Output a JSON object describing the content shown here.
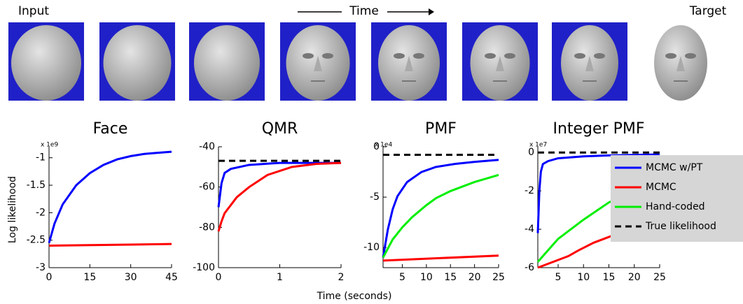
{
  "header": {
    "input_label": "Input",
    "time_label": "Time",
    "target_label": "Target"
  },
  "axis_labels": {
    "y": "Log likelihood",
    "x": "Time (seconds)"
  },
  "chart_data": [
    {
      "type": "line",
      "title": "Face",
      "scale_label": "x 1e9",
      "xlim": [
        0,
        45
      ],
      "xticks": [
        0,
        15,
        30,
        45
      ],
      "ylim": [
        -3,
        -0.8
      ],
      "yticks": [
        -1,
        -1.5,
        -2,
        -2.5,
        -3
      ],
      "series": [
        {
          "color": "#0000ff",
          "x": [
            0,
            2,
            5,
            10,
            15,
            20,
            25,
            30,
            35,
            40,
            45
          ],
          "values": [
            -2.55,
            -2.2,
            -1.85,
            -1.5,
            -1.28,
            -1.13,
            -1.03,
            -0.97,
            -0.93,
            -0.91,
            -0.89
          ]
        },
        {
          "color": "#ff0000",
          "x": [
            0,
            15,
            30,
            45
          ],
          "values": [
            -2.6,
            -2.59,
            -2.58,
            -2.57
          ]
        }
      ]
    },
    {
      "type": "line",
      "title": "QMR",
      "xlim": [
        0,
        2
      ],
      "xticks": [
        0,
        1,
        2
      ],
      "ylim": [
        -100,
        -40
      ],
      "yticks": [
        -40,
        -60,
        -80,
        -100
      ],
      "series": [
        {
          "color": "#0000ff",
          "x": [
            0,
            0.05,
            0.1,
            0.2,
            0.5,
            1,
            1.5,
            2
          ],
          "values": [
            -70,
            -58,
            -53,
            -51,
            -49,
            -48,
            -48,
            -48
          ]
        },
        {
          "color": "#ff0000",
          "x": [
            0,
            0.05,
            0.1,
            0.3,
            0.5,
            0.8,
            1.2,
            1.6,
            2
          ],
          "values": [
            -82,
            -77,
            -73,
            -65,
            -60,
            -54,
            -50,
            -48.5,
            -48
          ]
        },
        {
          "color": "#000000",
          "dashed": true,
          "x": [
            0,
            2
          ],
          "values": [
            -47,
            -47
          ]
        }
      ]
    },
    {
      "type": "line",
      "title": "PMF",
      "scale_label": "x 1e4",
      "xlim": [
        1,
        25
      ],
      "xticks": [
        5,
        10,
        15,
        20,
        25
      ],
      "ylim": [
        -12,
        0
      ],
      "yticks": [
        0,
        -5,
        -10
      ],
      "series": [
        {
          "color": "#0000ff",
          "x": [
            1,
            2,
            3,
            4,
            6,
            9,
            12,
            16,
            20,
            25
          ],
          "values": [
            -11,
            -8.2,
            -6.2,
            -4.9,
            -3.5,
            -2.5,
            -2,
            -1.7,
            -1.5,
            -1.3
          ]
        },
        {
          "color": "#00ee00",
          "x": [
            1,
            3,
            5,
            7,
            10,
            12,
            15,
            20,
            25
          ],
          "values": [
            -11,
            -9.2,
            -8,
            -7,
            -5.8,
            -5.1,
            -4.4,
            -3.5,
            -2.8
          ]
        },
        {
          "color": "#ff0000",
          "x": [
            1,
            25
          ],
          "values": [
            -11.3,
            -10.8
          ]
        },
        {
          "color": "#000000",
          "dashed": true,
          "x": [
            1,
            25
          ],
          "values": [
            -0.8,
            -0.8
          ]
        }
      ]
    },
    {
      "type": "line",
      "title": "Integer PMF",
      "scale_label": "x 1e7",
      "xlim": [
        1,
        25
      ],
      "xticks": [
        5,
        10,
        15,
        20,
        25
      ],
      "ylim": [
        -6,
        0.3
      ],
      "yticks": [
        0,
        -2,
        -4,
        -6
      ],
      "legend": "right",
      "series": [
        {
          "name": "MCMC w/PT",
          "color": "#0000ff",
          "x": [
            1,
            1.3,
            1.6,
            2,
            3,
            5,
            10,
            15,
            25
          ],
          "values": [
            -4.2,
            -2,
            -1,
            -0.6,
            -0.45,
            -0.3,
            -0.2,
            -0.15,
            -0.1
          ]
        },
        {
          "name": "MCMC",
          "color": "#ff0000",
          "x": [
            1,
            3,
            5,
            7,
            9,
            12,
            16,
            20,
            25
          ],
          "values": [
            -6,
            -5.8,
            -5.6,
            -5.4,
            -5.1,
            -4.7,
            -4.3,
            -3.9,
            -3.5
          ]
        },
        {
          "name": "Hand-coded",
          "color": "#00ee00",
          "x": [
            1,
            3,
            5,
            10,
            15,
            20,
            25
          ],
          "values": [
            -5.7,
            -5.1,
            -4.5,
            -3.5,
            -2.6,
            -2,
            -1.5
          ]
        },
        {
          "name": "True likelihood",
          "color": "#000000",
          "dashed": true,
          "x": [
            1,
            25
          ],
          "values": [
            0,
            0
          ]
        }
      ]
    }
  ]
}
